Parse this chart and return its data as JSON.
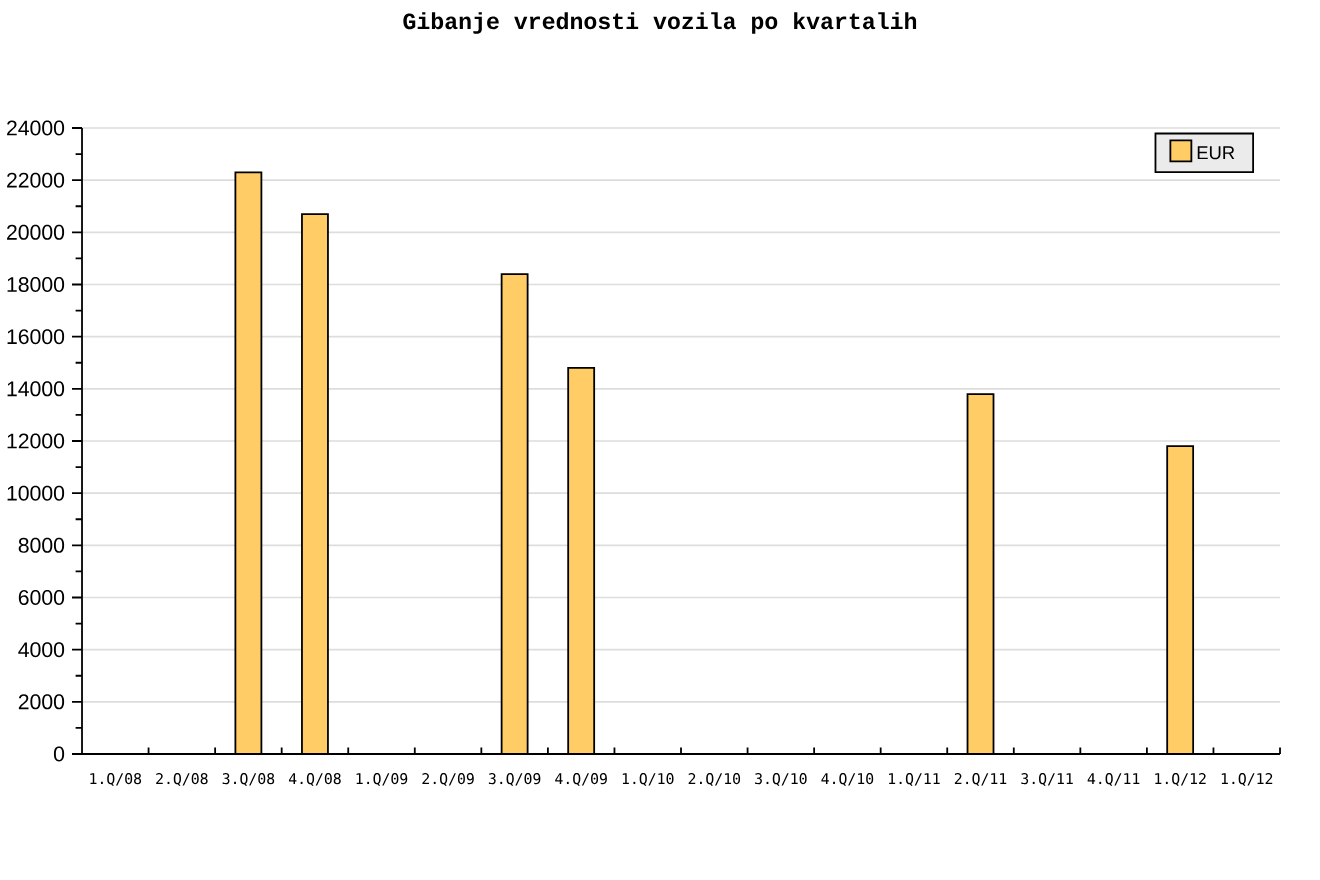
{
  "chart_data": {
    "type": "bar",
    "title": "Gibanje vrednosti vozila po kvartalih",
    "categories": [
      "1.Q/08",
      "2.Q/08",
      "3.Q/08",
      "4.Q/08",
      "1.Q/09",
      "2.Q/09",
      "3.Q/09",
      "4.Q/09",
      "1.Q/10",
      "2.Q/10",
      "3.Q/10",
      "4.Q/10",
      "1.Q/11",
      "2.Q/11",
      "3.Q/11",
      "4.Q/11",
      "1.Q/12",
      "1.Q/12"
    ],
    "series": [
      {
        "name": "EUR",
        "color": "#ffcc66",
        "values": [
          null,
          null,
          22300,
          20700,
          null,
          null,
          18400,
          14800,
          null,
          null,
          null,
          null,
          null,
          13800,
          null,
          null,
          11800,
          null
        ]
      }
    ],
    "ylim": [
      0,
      24000
    ],
    "yticks": [
      0,
      {
        "value": 1000,
        "label": null
      },
      2000,
      {
        "value": 3000,
        "label": null
      },
      4000,
      {
        "value": 5000,
        "label": null
      },
      6000,
      {
        "value": 7000,
        "label": null
      },
      8000,
      {
        "value": 9000,
        "label": null
      },
      10000,
      {
        "value": 11000,
        "label": null
      },
      12000,
      {
        "value": 13000,
        "label": null
      },
      14000,
      {
        "value": 15000,
        "label": null
      },
      16000,
      {
        "value": 17000,
        "label": null
      },
      18000,
      {
        "value": 19000,
        "label": null
      },
      20000,
      {
        "value": 21000,
        "label": null
      },
      22000,
      {
        "value": 23000,
        "label": null
      },
      24000
    ],
    "grid": "y",
    "legend": "top right"
  }
}
